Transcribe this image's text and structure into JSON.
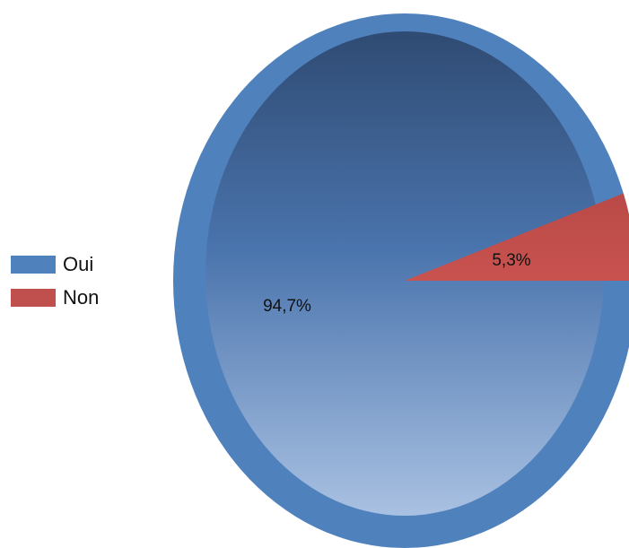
{
  "chart_data": {
    "type": "pie",
    "title": "",
    "slices": [
      {
        "label": "Oui",
        "value": 94.7,
        "display": "94,7%",
        "color": "#4f81bd"
      },
      {
        "label": "Non",
        "value": 5.3,
        "display": "5,3%",
        "color": "#c0504d"
      }
    ],
    "legend_position": "left"
  }
}
